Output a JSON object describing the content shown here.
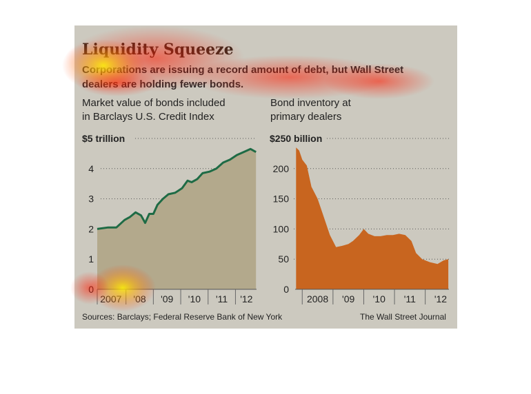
{
  "header": {
    "title": "Liquidity Squeeze",
    "subtitle_line1": "Corporations are issuing a record amount of debt, but Wall Street",
    "subtitle_line2": "dealers are holding fewer bonds."
  },
  "footer": {
    "sources": "Sources: Barclays; Federal Reserve Bank of New York",
    "credit": "The Wall Street Journal"
  },
  "colors": {
    "card_bg": "#ccc9bf",
    "left_fill": "#b3a98c",
    "left_line": "#1e6b45",
    "right_fill": "#c8651f"
  },
  "chart_data": [
    {
      "type": "area",
      "title_line1": "Market value of bonds included",
      "title_line2": "in Barclays U.S. Credit Index",
      "unit_label": "$5 trillion",
      "y_ticks": [
        "4",
        "3",
        "2",
        "1",
        "0"
      ],
      "x_tick_labels": [
        "2007",
        "'08",
        "'09",
        "'10",
        "'11",
        "'12"
      ],
      "ylim": [
        0,
        5
      ],
      "x": [
        2006.9,
        2007.3,
        2007.6,
        2007.9,
        2008.1,
        2008.3,
        2008.5,
        2008.65,
        2008.8,
        2008.95,
        2009.1,
        2009.3,
        2009.5,
        2009.75,
        2010.0,
        2010.2,
        2010.35,
        2010.55,
        2010.75,
        2011.0,
        2011.25,
        2011.5,
        2011.75,
        2012.0,
        2012.25,
        2012.5,
        2012.7
      ],
      "values": [
        2.0,
        2.05,
        2.05,
        2.3,
        2.4,
        2.55,
        2.45,
        2.2,
        2.5,
        2.5,
        2.8,
        3.0,
        3.15,
        3.2,
        3.35,
        3.6,
        3.55,
        3.65,
        3.85,
        3.9,
        4.0,
        4.2,
        4.3,
        4.45,
        4.55,
        4.65,
        4.55
      ],
      "grid": "dotted horizontal"
    },
    {
      "type": "area",
      "title_line1": "Bond inventory at",
      "title_line2": "primary dealers",
      "unit_label": "$250 billion",
      "y_ticks": [
        "200",
        "150",
        "100",
        "50",
        "0"
      ],
      "x_tick_labels": [
        "2008",
        "'09",
        "'10",
        "'11",
        "'12"
      ],
      "ylim": [
        0,
        250
      ],
      "x": [
        2007.65,
        2007.75,
        2007.85,
        2008.0,
        2008.15,
        2008.35,
        2008.55,
        2008.75,
        2008.95,
        2009.15,
        2009.35,
        2009.5,
        2009.7,
        2009.85,
        2010.0,
        2010.2,
        2010.4,
        2010.6,
        2010.8,
        2011.0,
        2011.2,
        2011.4,
        2011.55,
        2011.75,
        2012.0,
        2012.25,
        2012.45,
        2012.6
      ],
      "values": [
        235,
        230,
        215,
        205,
        170,
        150,
        120,
        90,
        70,
        72,
        75,
        80,
        90,
        100,
        92,
        88,
        88,
        90,
        90,
        92,
        90,
        80,
        60,
        50,
        45,
        42,
        48,
        50
      ],
      "grid": "dotted horizontal"
    }
  ]
}
